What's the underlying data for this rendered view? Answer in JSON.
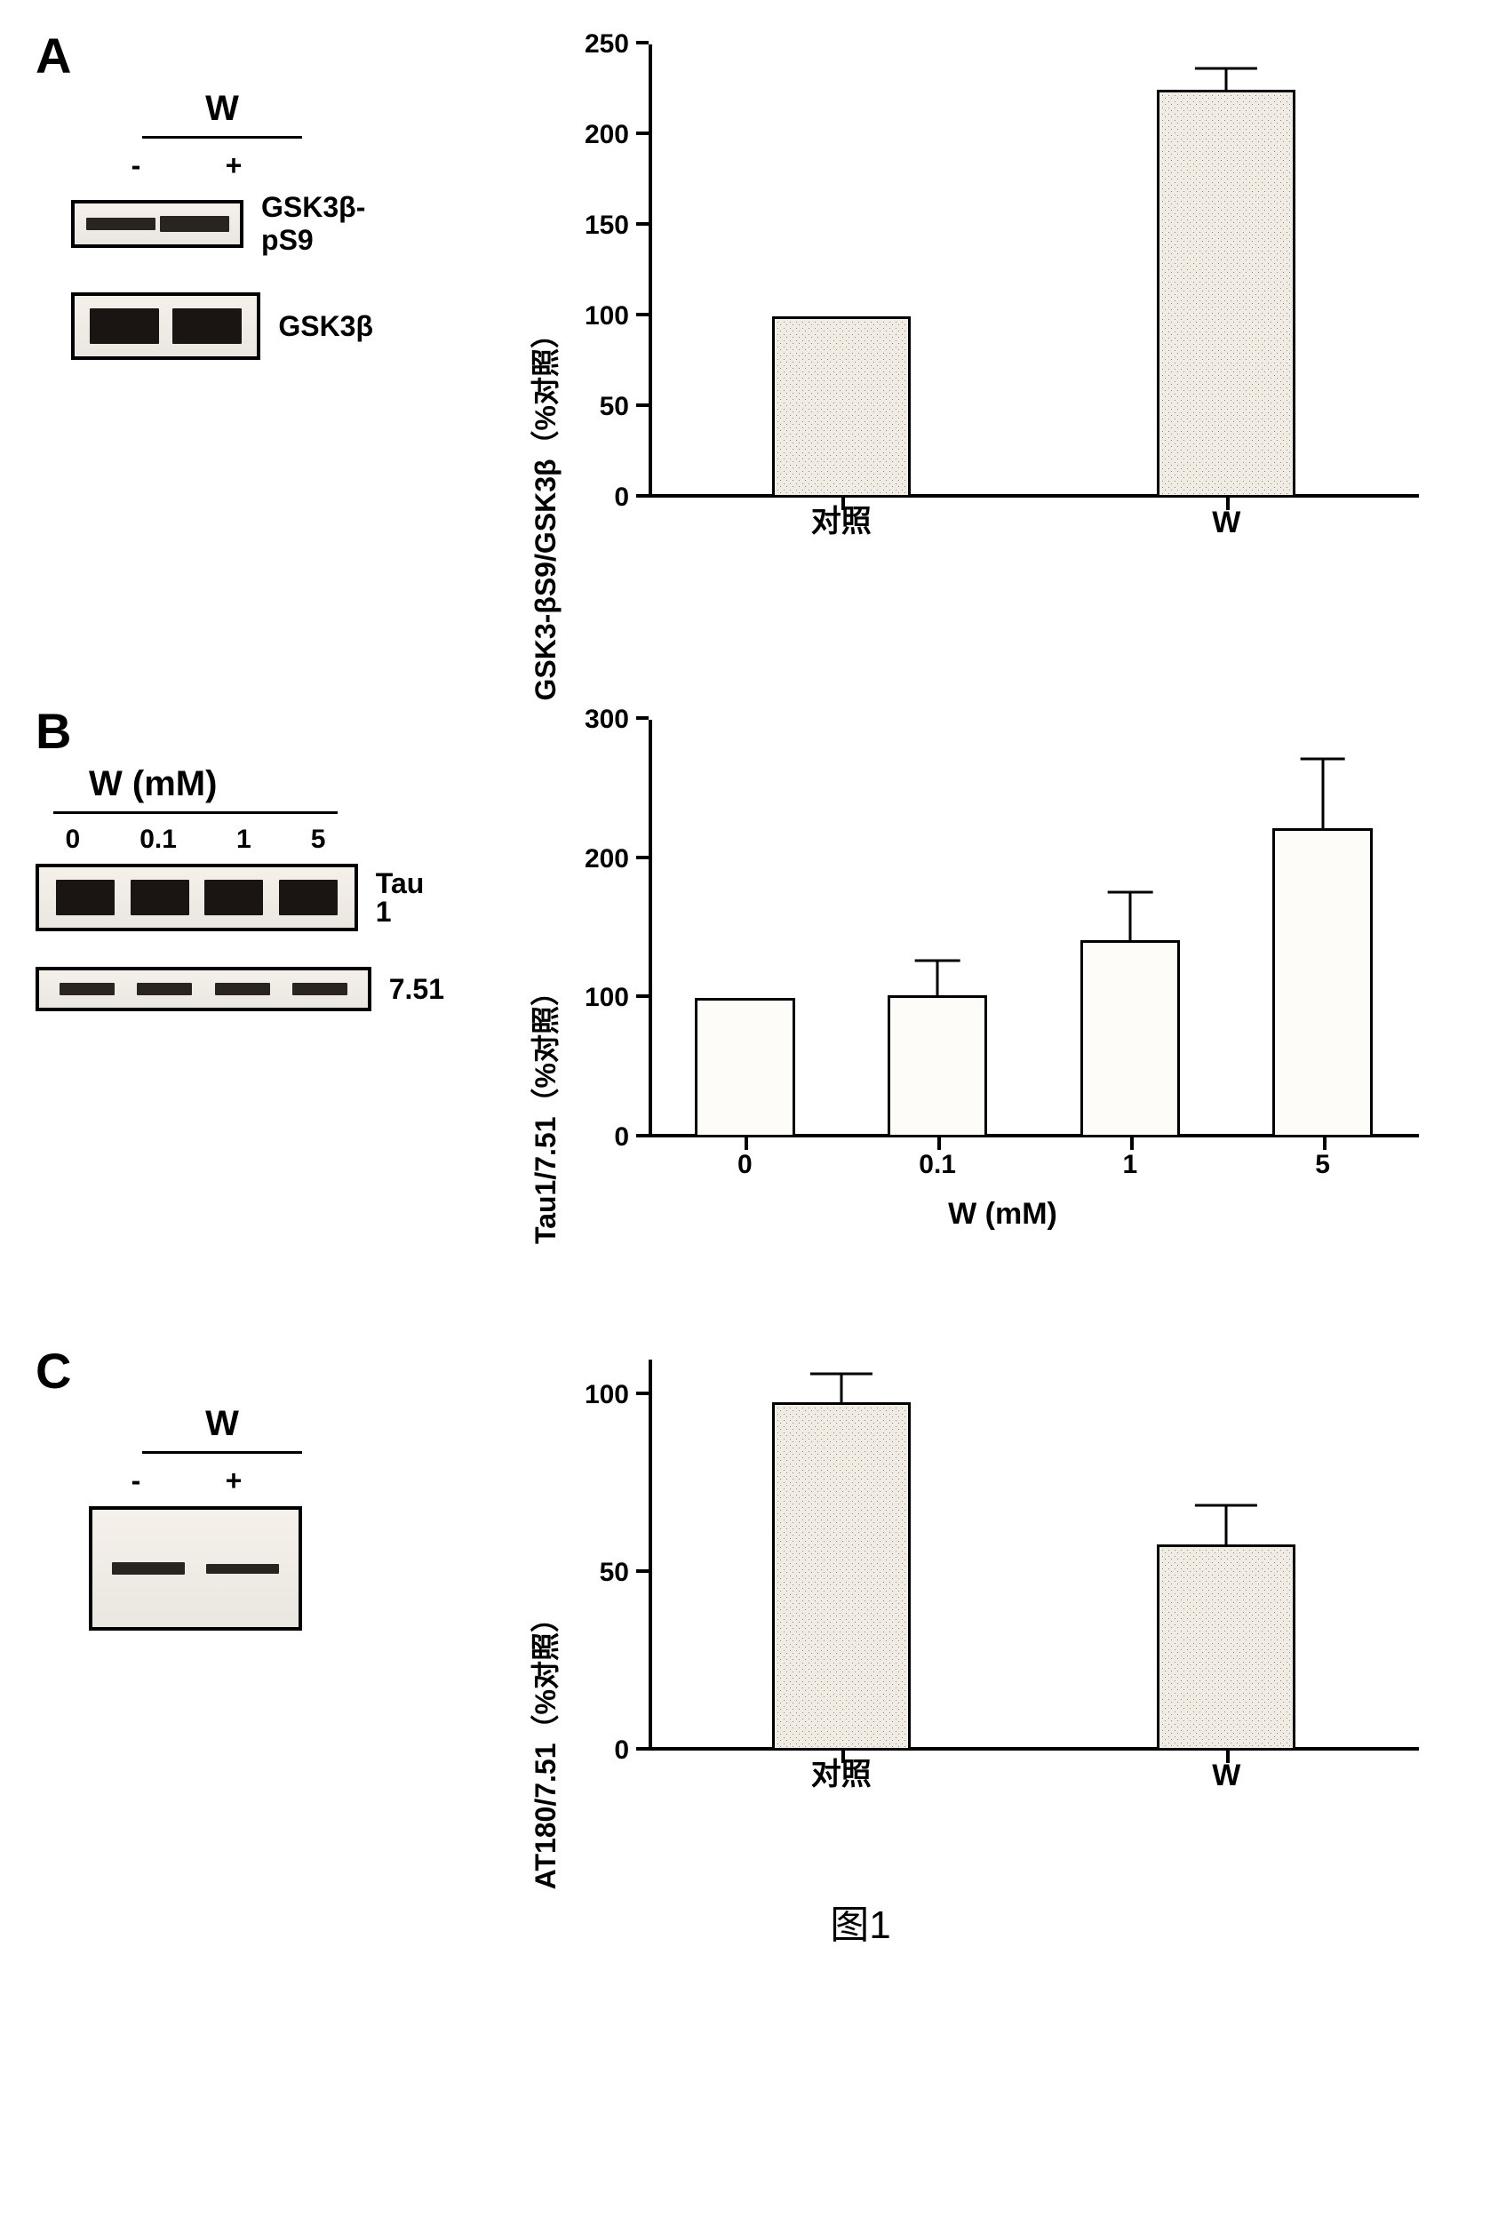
{
  "figure_caption": "图1",
  "panelA": {
    "label": "A",
    "blot_header": "W",
    "lane_labels": [
      "-",
      "+"
    ],
    "blot1_name": "GSK3β-pS9",
    "blot2_name": "GSK3β",
    "chart": {
      "type": "bar",
      "ylabel": "GSK3-βS9/GSK3β（%对照）",
      "ylim": [
        0,
        250
      ],
      "ytick_step": 50,
      "categories": [
        "对照",
        "W"
      ],
      "values": [
        100,
        225
      ],
      "errors": [
        0,
        12
      ],
      "bar_fill": "stipple",
      "bar_width_pct": 18
    }
  },
  "panelB": {
    "label": "B",
    "blot_header": "W (mM)",
    "lane_labels": [
      "0",
      "0.1",
      "1",
      "5"
    ],
    "blot1_name": "Tau 1",
    "blot2_name": "7.51",
    "chart": {
      "type": "bar",
      "ylabel": "Tau1/7.51（%对照）",
      "ylim": [
        0,
        300
      ],
      "ytick_step": 100,
      "xlabel": "W (mM)",
      "categories": [
        "0",
        "0.1",
        "1",
        "5"
      ],
      "values": [
        100,
        102,
        142,
        222
      ],
      "errors": [
        0,
        25,
        34,
        50
      ],
      "bar_fill": "open",
      "bar_width_pct": 13
    }
  },
  "panelC": {
    "label": "C",
    "blot_header": "W",
    "lane_labels": [
      "-",
      "+"
    ],
    "chart": {
      "type": "bar",
      "ylabel": "AT180/7.51（%对照）",
      "ylim": [
        0,
        110
      ],
      "yticks": [
        0,
        50,
        100
      ],
      "categories": [
        "对照",
        "W"
      ],
      "values": [
        98,
        58
      ],
      "errors": [
        8,
        11
      ],
      "bar_fill": "stipple",
      "bar_width_pct": 18
    }
  },
  "colors": {
    "axis": "#000000",
    "bar_border": "#000000",
    "background": "#ffffff",
    "stipple_bg": "#f0ece4",
    "open_bg": "#fdfcf9"
  }
}
